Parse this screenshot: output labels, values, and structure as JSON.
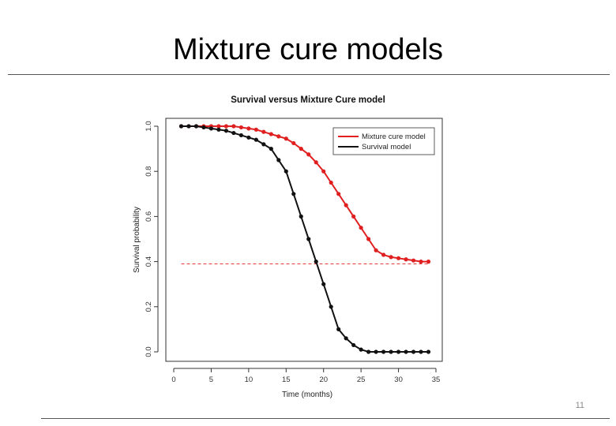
{
  "slide": {
    "title": "Mixture cure models",
    "page_number": "11"
  },
  "chart_data": {
    "type": "line",
    "title": "Survival versus Mixture Cure model",
    "xlabel": "Time (months)",
    "ylabel": "Survival probability",
    "xlim": [
      0,
      35
    ],
    "ylim": [
      0,
      1
    ],
    "xticks": [
      "0",
      "5",
      "10",
      "15",
      "20",
      "25",
      "30",
      "35"
    ],
    "yticks": [
      "0.0",
      "0.2",
      "0.4",
      "0.6",
      "0.8",
      "1.0"
    ],
    "xtick_values": [
      0,
      5,
      10,
      15,
      20,
      25,
      30,
      35
    ],
    "ytick_values": [
      0,
      0.2,
      0.4,
      0.6,
      0.8,
      1.0
    ],
    "legend_position": "top-right",
    "grid": false,
    "x": [
      1,
      2,
      3,
      4,
      5,
      6,
      7,
      8,
      9,
      10,
      11,
      12,
      13,
      14,
      15,
      16,
      17,
      18,
      19,
      20,
      21,
      22,
      23,
      24,
      25,
      26,
      27,
      28,
      29,
      30,
      31,
      32,
      33,
      34
    ],
    "series": [
      {
        "name": "Mixture cure model",
        "color": "#e02020",
        "values": [
          1.0,
          1.0,
          1.0,
          1.0,
          1.0,
          1.0,
          1.0,
          1.0,
          0.995,
          0.99,
          0.985,
          0.975,
          0.965,
          0.955,
          0.945,
          0.925,
          0.9,
          0.875,
          0.84,
          0.8,
          0.75,
          0.7,
          0.65,
          0.6,
          0.55,
          0.5,
          0.45,
          0.43,
          0.42,
          0.415,
          0.41,
          0.405,
          0.4,
          0.4
        ]
      },
      {
        "name": "Survival model",
        "color": "#111111",
        "values": [
          1.0,
          1.0,
          1.0,
          0.995,
          0.99,
          0.985,
          0.98,
          0.97,
          0.96,
          0.95,
          0.94,
          0.92,
          0.9,
          0.85,
          0.8,
          0.7,
          0.6,
          0.5,
          0.4,
          0.3,
          0.2,
          0.1,
          0.06,
          0.03,
          0.01,
          0.0,
          0.0,
          0.0,
          0.0,
          0.0,
          0.0,
          0.0,
          0.0,
          0.0
        ]
      }
    ],
    "reference_line": {
      "y": 0.39,
      "color": "#e02020",
      "style": "dashed"
    }
  }
}
